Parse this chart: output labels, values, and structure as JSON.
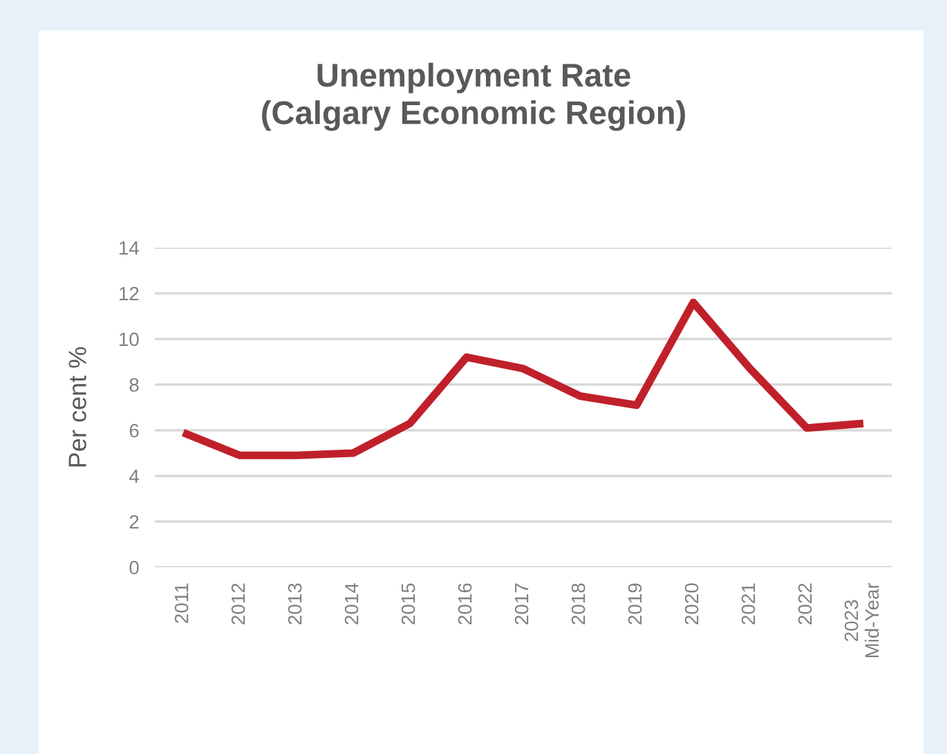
{
  "chart_data": {
    "type": "line",
    "title": "Unemployment Rate\n(Calgary Economic Region)",
    "ylabel": "Per cent %",
    "categories": [
      "2011",
      "2012",
      "2013",
      "2014",
      "2015",
      "2016",
      "2017",
      "2018",
      "2019",
      "2020",
      "2021",
      "2022",
      "2023\nMid-Year"
    ],
    "series": [
      {
        "color": "#c0202a",
        "values": [
          5.9,
          4.9,
          4.9,
          5.0,
          6.3,
          9.2,
          8.7,
          7.5,
          7.1,
          11.6,
          8.7,
          6.1,
          6.3
        ]
      }
    ],
    "ylim": [
      0,
      14
    ],
    "yticks": [
      0,
      2,
      4,
      6,
      8,
      10,
      12,
      14
    ],
    "grid": "y",
    "legend": false,
    "marker": "none",
    "line_style": "solid"
  }
}
